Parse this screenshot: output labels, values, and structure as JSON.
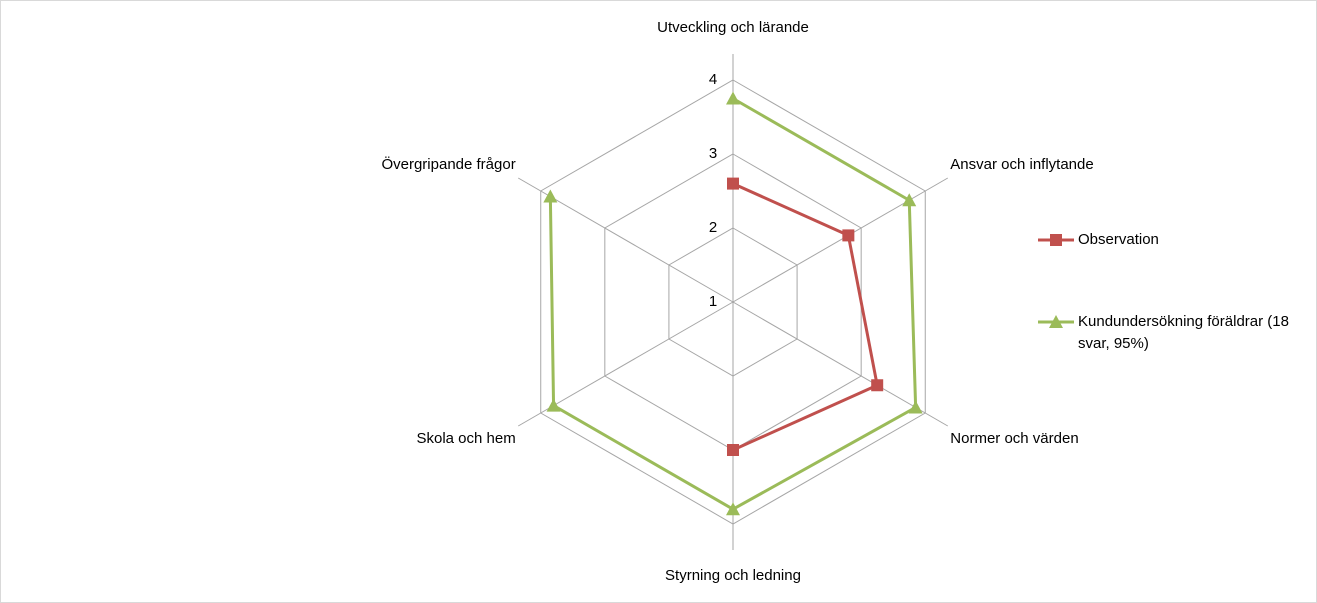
{
  "chart_data": {
    "type": "radar",
    "categories": [
      "Utveckling och lärande",
      "Ansvar och inflytande",
      "Normer och värden",
      "Styrning och ledning",
      "Skola och hem",
      "Övergripande frågor"
    ],
    "series": [
      {
        "name": "Observation",
        "color": "#c0504d",
        "marker": "square",
        "values": [
          2.6,
          2.8,
          3.25,
          3.0,
          null,
          null
        ]
      },
      {
        "name": "Kundundersökning föräldrar (18 svar, 95%)",
        "color": "#9bbb59",
        "marker": "triangle",
        "values": [
          3.75,
          3.75,
          3.85,
          3.8,
          3.8,
          3.85
        ]
      }
    ],
    "ylim": [
      1,
      4
    ],
    "yticks": [
      1,
      2,
      3,
      4
    ],
    "grid": true,
    "legend": "right"
  }
}
